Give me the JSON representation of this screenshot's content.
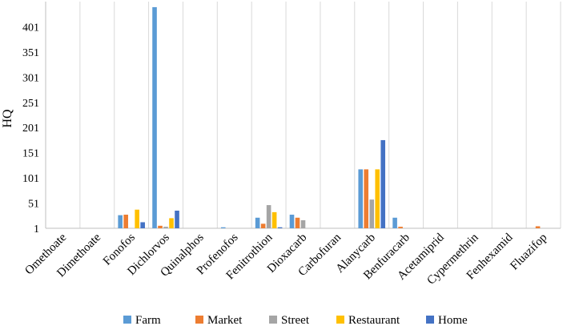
{
  "chart_data": {
    "type": "bar",
    "title": "",
    "xlabel": "",
    "ylabel": "HQ",
    "ylim": [
      1,
      451
    ],
    "yticks": [
      1,
      51,
      101,
      151,
      201,
      251,
      301,
      351,
      401
    ],
    "grid": "vertical",
    "legend": "bottom",
    "categories": [
      "Omethoate",
      "Dimethoate",
      "Fonofos",
      "Dichlorvos",
      "Quinalphos",
      "Profenofos",
      "Fenitrothion",
      "Dioxacarb",
      "Carbofuran",
      "Alanycarb",
      "Benfuracarb",
      "Acetamiprid",
      "Cypermethrin",
      "Fenhexamid",
      "Fluazifop"
    ],
    "series": [
      {
        "name": "Farm",
        "color": "#5B9BD5",
        "values": [
          0,
          0,
          27,
          440,
          0,
          3,
          22,
          28,
          0,
          118,
          22,
          0,
          0,
          0,
          0
        ]
      },
      {
        "name": "Market",
        "color": "#ED7D31",
        "values": [
          0,
          0,
          28,
          6,
          0,
          0,
          10,
          22,
          0,
          118,
          4,
          0,
          0,
          0,
          5
        ]
      },
      {
        "name": "Street",
        "color": "#A5A5A5",
        "values": [
          0,
          0,
          0,
          4,
          0,
          0,
          47,
          17,
          0,
          58,
          0,
          0,
          0,
          0,
          0
        ]
      },
      {
        "name": "Restaurant",
        "color": "#FFC000",
        "values": [
          0,
          0,
          38,
          21,
          0,
          0,
          33,
          0,
          0,
          118,
          0,
          0,
          0,
          0,
          0
        ]
      },
      {
        "name": "Home",
        "color": "#4472C4",
        "values": [
          0,
          0,
          13,
          36,
          0,
          0,
          3,
          0,
          0,
          176,
          0,
          0,
          0,
          0,
          0
        ]
      }
    ]
  },
  "colors": {
    "grid": "#D9D9D9",
    "axis": "#BFBFBF"
  }
}
